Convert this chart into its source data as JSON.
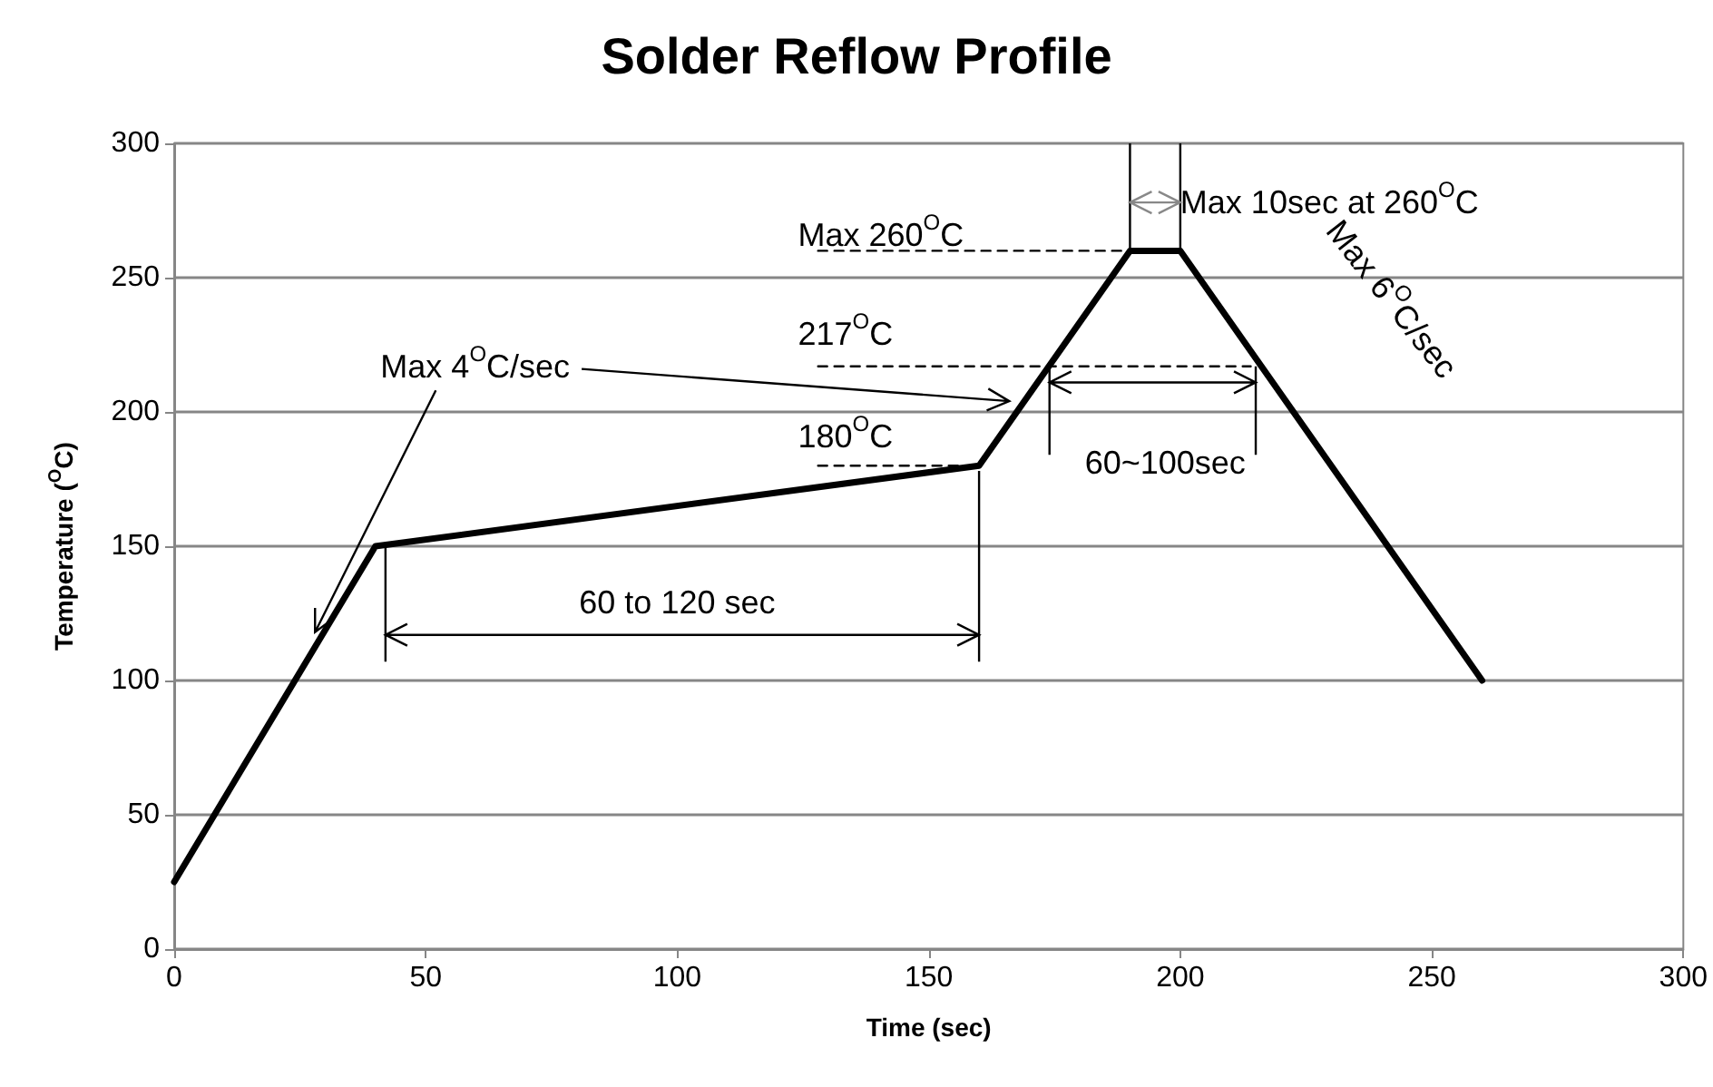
{
  "chart_data": {
    "type": "line",
    "title": "Solder Reflow Profile",
    "xlabel": "Time (sec)",
    "ylabel": "Temperature ($^{O}$C)",
    "xlim": [
      0,
      300
    ],
    "ylim": [
      0,
      300
    ],
    "xticks": [
      0,
      50,
      100,
      150,
      200,
      250,
      300
    ],
    "yticks": [
      0,
      50,
      100,
      150,
      200,
      250,
      300
    ],
    "grid": "y",
    "marker": "none",
    "line_style": "solid",
    "series": [
      {
        "color": "#000000",
        "x": [
          0,
          40,
          160,
          190,
          200,
          260
        ],
        "values": [
          25,
          150,
          180,
          260,
          260,
          100
        ]
      },
      {
        "color": "#000000",
        "line_style": "dashed",
        "x": [
          128,
          190
        ],
        "values": [
          260,
          260
        ]
      },
      {
        "color": "#000000",
        "line_style": "dashed",
        "x": [
          128,
          214
        ],
        "values": [
          217,
          217
        ]
      },
      {
        "color": "#000000",
        "line_style": "dashed",
        "x": [
          128,
          160
        ],
        "values": [
          180,
          180
        ]
      }
    ],
    "annotations": [
      "Max 260$^{O}$C",
      "Max 10sec at 260$^{O}$C",
      "217$^{O}$C",
      "180$^{O}$C",
      {
        "text": "Max 4$^{O}$C/sec",
        "x": 166,
        "y": 204
      },
      "60 to 120 sec",
      {
        "text": "60~100sec",
        "x": 174,
        "y": 217
      },
      "Max 6$^{O}$C/sec"
    ]
  }
}
